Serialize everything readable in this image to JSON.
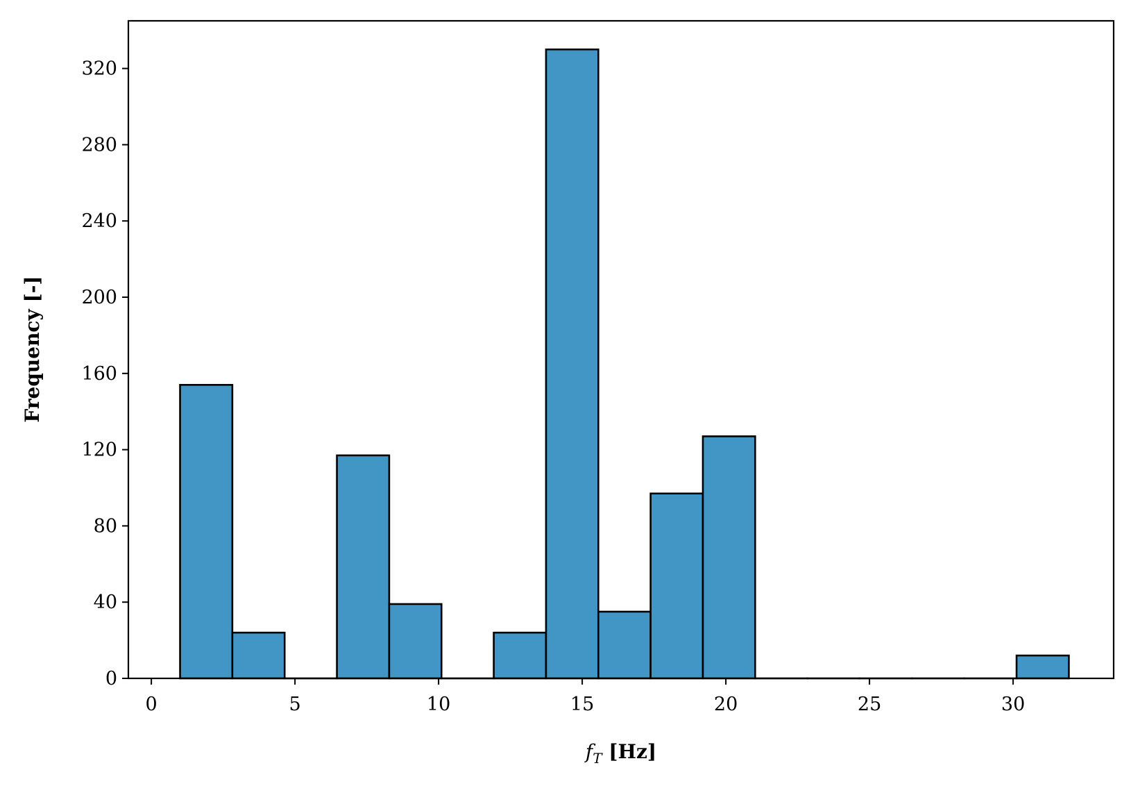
{
  "chart_data": {
    "type": "bar",
    "subtype": "histogram",
    "title": "",
    "xlabel": {
      "symbol": "f",
      "subscript": "T",
      "unit": " [Hz]"
    },
    "ylabel": "Frequency [-]",
    "xlim": [
      -0.8,
      33.5
    ],
    "ylim": [
      0,
      345
    ],
    "xticks": [
      0,
      5,
      10,
      15,
      20,
      25,
      30
    ],
    "yticks": [
      0,
      40,
      80,
      120,
      160,
      200,
      240,
      280,
      320
    ],
    "bar_color": "#4196c5",
    "edge_color": "#000000",
    "grid": false,
    "legend": "none",
    "bins": [
      {
        "start": 1.0,
        "end": 2.82,
        "value": 154
      },
      {
        "start": 2.82,
        "end": 4.64,
        "value": 24
      },
      {
        "start": 4.64,
        "end": 6.46,
        "value": 0
      },
      {
        "start": 6.46,
        "end": 8.28,
        "value": 117
      },
      {
        "start": 8.28,
        "end": 10.1,
        "value": 39
      },
      {
        "start": 10.1,
        "end": 11.92,
        "value": 0
      },
      {
        "start": 11.92,
        "end": 13.74,
        "value": 24
      },
      {
        "start": 13.74,
        "end": 15.56,
        "value": 330
      },
      {
        "start": 15.56,
        "end": 17.38,
        "value": 35
      },
      {
        "start": 17.38,
        "end": 19.2,
        "value": 97
      },
      {
        "start": 19.2,
        "end": 21.02,
        "value": 127
      },
      {
        "start": 21.02,
        "end": 22.84,
        "value": 0
      },
      {
        "start": 22.84,
        "end": 24.66,
        "value": 0
      },
      {
        "start": 24.66,
        "end": 26.48,
        "value": 0
      },
      {
        "start": 26.48,
        "end": 28.3,
        "value": 0
      },
      {
        "start": 28.3,
        "end": 30.12,
        "value": 0
      },
      {
        "start": 30.12,
        "end": 31.94,
        "value": 12
      }
    ]
  }
}
